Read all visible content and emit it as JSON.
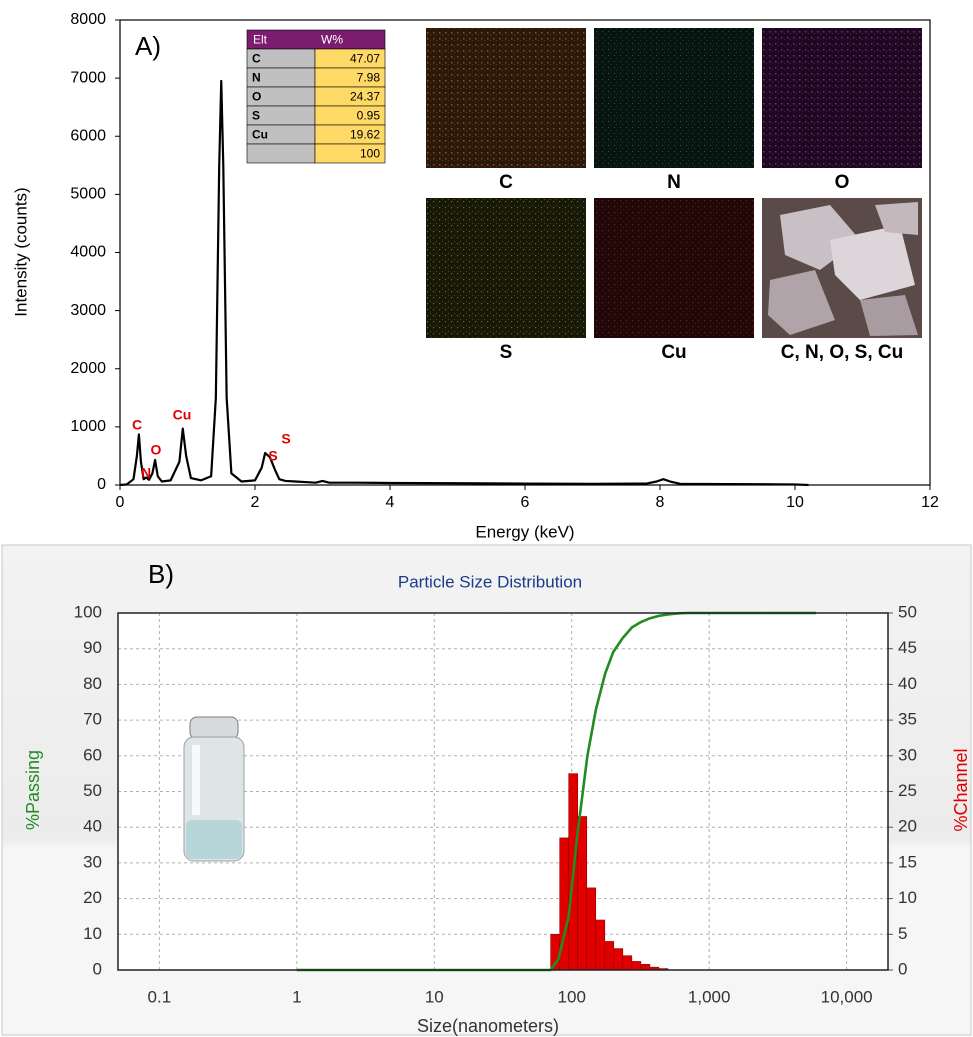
{
  "chart_data": [
    {
      "type": "line",
      "panel_label": "A)",
      "xlabel": "Energy (keV)",
      "ylabel": "Intensity (counts)",
      "x": [
        0,
        0.1,
        0.2,
        0.25,
        0.28,
        0.31,
        0.35,
        0.39,
        0.43,
        0.48,
        0.52,
        0.56,
        0.62,
        0.75,
        0.88,
        0.93,
        0.98,
        1.05,
        1.2,
        1.35,
        1.42,
        1.47,
        1.5,
        1.53,
        1.58,
        1.65,
        1.8,
        2.0,
        2.1,
        2.15,
        2.22,
        2.3,
        2.36,
        2.45,
        2.6,
        2.9,
        3.0,
        3.1,
        3.5,
        4,
        5,
        6,
        7,
        7.8,
        7.95,
        8.05,
        8.15,
        8.3,
        9,
        10,
        10.2
      ],
      "values": [
        0,
        10,
        100,
        500,
        870,
        400,
        100,
        130,
        90,
        200,
        430,
        150,
        60,
        80,
        400,
        970,
        500,
        120,
        80,
        150,
        1500,
        5500,
        6950,
        5500,
        1500,
        200,
        60,
        80,
        300,
        550,
        480,
        250,
        100,
        70,
        60,
        40,
        70,
        40,
        40,
        35,
        30,
        25,
        20,
        25,
        60,
        100,
        60,
        20,
        15,
        10,
        0
      ],
      "color": "#000000",
      "xlim": [
        0,
        12
      ],
      "xticks": [
        0,
        2,
        4,
        6,
        8,
        10,
        12
      ],
      "ylim": [
        0,
        8000
      ],
      "yticks": [
        0,
        1000,
        2000,
        3000,
        4000,
        5000,
        6000,
        7000,
        8000
      ],
      "grid": false,
      "peak_labels": [
        "C",
        "N",
        "O",
        "Cu",
        "S",
        "S"
      ],
      "inset_table": {
        "header": [
          "Elt",
          "W%"
        ],
        "rows": [
          [
            "C",
            47.07
          ],
          [
            "N",
            7.98
          ],
          [
            "O",
            24.37
          ],
          [
            "S",
            0.95
          ],
          [
            "Cu",
            19.62
          ]
        ],
        "total": 100
      },
      "map_labels": [
        "C",
        "N",
        "O",
        "S",
        "Cu",
        "C, N, O, S, Cu"
      ]
    },
    {
      "type": "histogram",
      "panel_label": "B)",
      "title": "Particle Size Distribution",
      "xlabel": "Size(nanometers)",
      "ylabel": "%Passing",
      "y2label": "%Channel",
      "xscale": "log",
      "grid": true,
      "xlim": [
        0.05,
        20000
      ],
      "xticks": [
        0.1,
        1,
        10,
        100,
        {
          "value": 1000,
          "label": "1,000"
        },
        {
          "value": 10000,
          "label": "10,000"
        }
      ],
      "ylim": [
        0,
        100
      ],
      "yticks": [
        0,
        10,
        20,
        30,
        40,
        50,
        60,
        70,
        80,
        90,
        100
      ],
      "y2lim": [
        0,
        50
      ],
      "y2ticks": [
        0,
        5,
        10,
        15,
        20,
        25,
        30,
        35,
        40,
        45,
        50
      ],
      "hist": {
        "axis": "y2",
        "color": "#e00000",
        "bins": [
          70.3,
          81.8,
          95.1,
          110.6,
          128.6,
          149.6,
          174.0,
          202.3,
          235.3,
          273.7,
          318.3,
          370.2,
          430.5,
          500.7
        ],
        "values": [
          5,
          18.5,
          27.5,
          21.5,
          11.5,
          7,
          4,
          3,
          2,
          1.2,
          0.8,
          0.4,
          0.2
        ]
      },
      "line": {
        "color": "#228b22",
        "x": [
          1,
          70,
          80,
          95,
          110,
          130,
          150,
          175,
          200,
          235,
          275,
          320,
          370,
          430,
          500,
          600,
          700,
          6000
        ],
        "values": [
          0,
          0,
          3,
          15,
          38,
          60,
          73,
          83,
          89,
          93,
          96,
          97.5,
          98.5,
          99.2,
          99.6,
          99.9,
          100,
          100
        ]
      }
    }
  ]
}
